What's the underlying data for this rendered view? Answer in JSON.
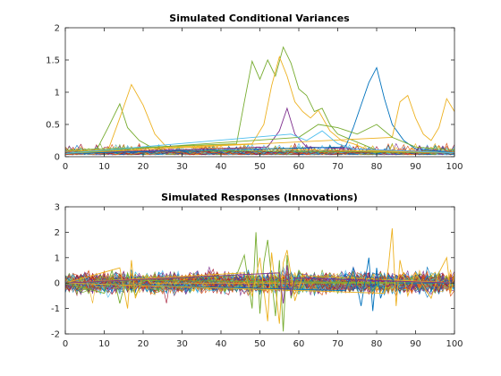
{
  "chart_data": [
    {
      "type": "line",
      "title": "Simulated Conditional Variances",
      "xlim": [
        0,
        100
      ],
      "ylim": [
        0,
        2
      ],
      "xticks": [
        0,
        10,
        20,
        30,
        40,
        50,
        60,
        70,
        80,
        90,
        100
      ],
      "yticks": [
        0,
        0.5,
        1,
        1.5,
        2
      ],
      "xtick_labels": [
        "0",
        "10",
        "20",
        "30",
        "40",
        "50",
        "60",
        "70",
        "80",
        "90",
        "100"
      ],
      "ytick_labels": [
        "0",
        "0.5",
        "1",
        "1.5",
        "2"
      ],
      "grid": false,
      "series_count": 100,
      "baseline_level": 0.06,
      "highlight_series": [
        {
          "color": "#77AC30",
          "x": [
            0,
            8,
            11,
            14,
            16,
            19,
            22,
            25,
            100
          ],
          "y": [
            0.05,
            0.1,
            0.45,
            0.82,
            0.45,
            0.25,
            0.15,
            0.1,
            0.06
          ]
        },
        {
          "color": "#EDB120",
          "x": [
            0,
            11,
            14,
            17,
            20,
            23,
            26,
            100
          ],
          "y": [
            0.05,
            0.1,
            0.6,
            1.12,
            0.8,
            0.35,
            0.15,
            0.06
          ]
        },
        {
          "color": "#77AC30",
          "x": [
            0,
            44,
            46,
            48,
            50,
            52,
            54,
            56,
            58,
            60,
            62,
            64,
            66,
            68,
            70,
            72,
            76,
            80,
            100
          ],
          "y": [
            0.1,
            0.2,
            0.85,
            1.48,
            1.2,
            1.5,
            1.25,
            1.7,
            1.45,
            1.05,
            0.95,
            0.7,
            0.75,
            0.5,
            0.35,
            0.3,
            0.2,
            0.1,
            0.07
          ]
        },
        {
          "color": "#EDB120",
          "x": [
            0,
            48,
            51,
            53,
            55,
            57,
            59,
            61,
            63,
            65,
            68,
            71,
            74,
            78,
            100
          ],
          "y": [
            0.08,
            0.2,
            0.5,
            1.1,
            1.55,
            1.25,
            0.85,
            0.7,
            0.6,
            0.72,
            0.4,
            0.25,
            0.2,
            0.1,
            0.07
          ]
        },
        {
          "color": "#7E2F8E",
          "x": [
            0,
            52,
            55,
            57,
            59,
            62,
            100
          ],
          "y": [
            0.05,
            0.15,
            0.4,
            0.75,
            0.35,
            0.15,
            0.06
          ]
        },
        {
          "color": "#0072BD",
          "x": [
            0,
            72,
            74,
            76,
            78,
            80,
            82,
            84,
            87,
            90,
            100
          ],
          "y": [
            0.05,
            0.15,
            0.45,
            0.8,
            1.15,
            1.38,
            0.9,
            0.5,
            0.25,
            0.12,
            0.06
          ]
        },
        {
          "color": "#EDB120",
          "x": [
            0,
            84,
            86,
            88,
            90,
            92,
            94,
            96,
            98,
            100
          ],
          "y": [
            0.05,
            0.3,
            0.85,
            0.95,
            0.6,
            0.35,
            0.25,
            0.45,
            0.9,
            0.7
          ]
        },
        {
          "color": "#77AC30",
          "x": [
            0,
            60,
            65,
            70,
            75,
            80,
            84,
            88,
            90,
            100
          ],
          "y": [
            0.05,
            0.3,
            0.5,
            0.45,
            0.35,
            0.5,
            0.3,
            0.2,
            0.15,
            0.1
          ]
        },
        {
          "color": "#4DBEEE",
          "x": [
            0,
            58,
            62,
            66,
            70,
            74,
            100
          ],
          "y": [
            0.05,
            0.35,
            0.25,
            0.4,
            0.2,
            0.12,
            0.06
          ]
        }
      ]
    },
    {
      "type": "line",
      "title": "Simulated Responses (Innovations)",
      "xlim": [
        0,
        100
      ],
      "ylim": [
        -2,
        3
      ],
      "xticks": [
        0,
        10,
        20,
        30,
        40,
        50,
        60,
        70,
        80,
        90,
        100
      ],
      "yticks": [
        -2,
        -1,
        0,
        1,
        2,
        3
      ],
      "xtick_labels": [
        "0",
        "10",
        "20",
        "30",
        "40",
        "50",
        "60",
        "70",
        "80",
        "90",
        "100"
      ],
      "ytick_labels": [
        "-2",
        "-1",
        "0",
        "1",
        "2",
        "3"
      ],
      "grid": false,
      "series_count": 100,
      "noise_amplitude": 0.3,
      "highlight_series": [
        {
          "color": "#77AC30",
          "x": [
            0,
            10,
            12,
            14,
            16,
            18,
            20,
            100
          ],
          "y": [
            0,
            -0.4,
            0.5,
            -0.8,
            0.4,
            -0.5,
            0.1,
            0
          ]
        },
        {
          "color": "#EDB120",
          "x": [
            0,
            14,
            16,
            17,
            18,
            20,
            22,
            100
          ],
          "y": [
            0,
            0.6,
            -1.0,
            0.9,
            -0.6,
            0.3,
            0,
            0
          ]
        },
        {
          "color": "#77AC30",
          "x": [
            0,
            44,
            46,
            48,
            49,
            50,
            51,
            52,
            54,
            55,
            56,
            57,
            58,
            60,
            62,
            100
          ],
          "y": [
            0,
            0.3,
            1.1,
            -1.0,
            2.0,
            -1.2,
            0.8,
            1.7,
            -1.3,
            0.9,
            -1.9,
            1.1,
            -0.6,
            0.5,
            0,
            0
          ]
        },
        {
          "color": "#EDB120",
          "x": [
            0,
            46,
            48,
            50,
            52,
            53,
            55,
            56,
            57,
            59,
            61,
            100
          ],
          "y": [
            0,
            0.4,
            -0.5,
            1.0,
            -1.5,
            1.2,
            -1.6,
            0.8,
            1.3,
            -0.7,
            0.3,
            0
          ]
        },
        {
          "color": "#0072BD",
          "x": [
            0,
            72,
            74,
            76,
            78,
            79,
            80,
            81,
            83,
            85,
            100
          ],
          "y": [
            0,
            -0.3,
            0.6,
            -0.9,
            1.0,
            -1.1,
            0.6,
            -0.6,
            0.3,
            0,
            0
          ]
        },
        {
          "color": "#EDB120",
          "x": [
            0,
            82,
            83,
            84,
            85,
            86,
            88,
            90,
            94,
            96,
            98,
            99,
            100
          ],
          "y": [
            0,
            -0.4,
            0.6,
            2.15,
            -0.9,
            0.9,
            -0.5,
            0.4,
            -0.6,
            0.4,
            1.0,
            -0.4,
            0.4
          ]
        },
        {
          "color": "#7E2F8E",
          "x": [
            0,
            55,
            56,
            57,
            58,
            59,
            100
          ],
          "y": [
            0,
            0.4,
            -0.8,
            0.7,
            -0.5,
            0.2,
            0
          ]
        }
      ]
    }
  ],
  "colors": [
    "#0072BD",
    "#D95319",
    "#EDB120",
    "#7E2F8E",
    "#77AC30",
    "#4DBEEE",
    "#A2142F"
  ]
}
